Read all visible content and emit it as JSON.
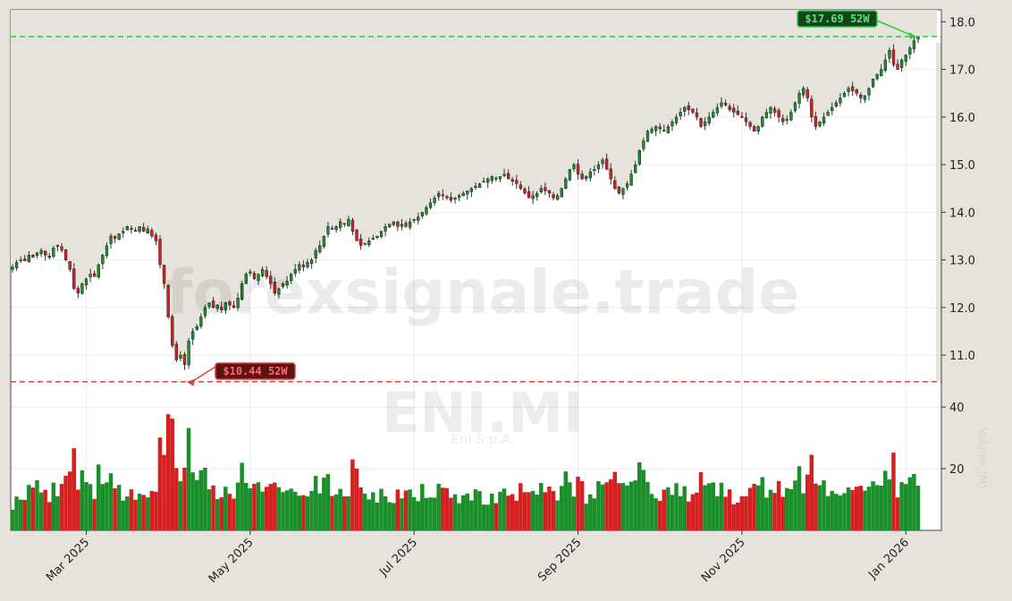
{
  "watermark": {
    "site": "forexsignale.trade",
    "ticker": "ENI.MI",
    "company": "Eni S.p.A.",
    "side_label": "Volume (M)"
  },
  "colors": {
    "up": "#1a8f2a",
    "down": "#d42020",
    "high_line": "#2ecc40",
    "low_line": "#e04040",
    "plot_bg": "#ffffff",
    "shade": "#e6e3dd"
  },
  "chart_data": {
    "type": "candlestick",
    "title": "",
    "xlabel": "",
    "ylabel": "",
    "price_axis": {
      "ylim": [
        10.1,
        18.25
      ],
      "ticks": [
        "11.0",
        "12.0",
        "13.0",
        "14.0",
        "15.0",
        "16.0",
        "17.0",
        "18.0"
      ]
    },
    "volume_axis": {
      "ylim": [
        0,
        47
      ],
      "ticks": [
        "20",
        "40"
      ]
    },
    "x_axis": {
      "ticks": [
        "Mar 2025",
        "May 2025",
        "Jul 2025",
        "Sep 2025",
        "Nov 2025",
        "Jan 2026"
      ]
    },
    "high_52w": {
      "value": 17.69,
      "label": "$17.69 52W"
    },
    "low_52w": {
      "value": 10.44,
      "label": "$10.44 52W"
    },
    "grid": true,
    "series": [
      {
        "month": "2025-02",
        "closes": [
          12.85,
          12.95,
          13.0,
          12.98,
          13.1,
          13.05,
          13.15,
          13.2,
          13.1,
          13.05,
          13.25,
          13.3,
          13.2,
          13.0,
          12.8,
          12.4,
          12.3,
          12.5
        ]
      },
      {
        "month": "2025-03",
        "closes": [
          12.6,
          12.7,
          12.65,
          12.9,
          13.1,
          13.3,
          13.5,
          13.45,
          13.55,
          13.6,
          13.7,
          13.65,
          13.6,
          13.7,
          13.6,
          13.65,
          13.5,
          13.4,
          12.9,
          12.5
        ]
      },
      {
        "month": "2025-04",
        "closes": [
          11.8,
          11.2,
          10.9,
          11.0,
          10.8,
          11.3,
          11.5,
          11.6,
          11.8,
          12.0,
          12.1,
          12.0,
          12.05,
          11.95,
          12.1,
          12.05,
          12.0,
          12.2,
          12.5,
          12.7
        ]
      },
      {
        "month": "2025-05",
        "closes": [
          12.75,
          12.6,
          12.7,
          12.8,
          12.65,
          12.5,
          12.3,
          12.4,
          12.5,
          12.55,
          12.7,
          12.8,
          12.9,
          12.85,
          12.95,
          13.0,
          13.2,
          13.3,
          13.5,
          13.7
        ]
      },
      {
        "month": "2025-06",
        "closes": [
          13.65,
          13.7,
          13.8,
          13.75,
          13.85,
          13.6,
          13.4,
          13.3,
          13.35,
          13.4,
          13.45,
          13.5,
          13.6,
          13.7,
          13.75,
          13.8,
          13.7,
          13.75,
          13.7,
          13.8
        ]
      },
      {
        "month": "2025-07",
        "closes": [
          13.85,
          13.9,
          14.0,
          14.1,
          14.2,
          14.3,
          14.4,
          14.35,
          14.3,
          14.25,
          14.3,
          14.35,
          14.4,
          14.45,
          14.5,
          14.55,
          14.6,
          14.65,
          14.7,
          14.75
        ]
      },
      {
        "month": "2025-08",
        "closes": [
          14.7,
          14.75,
          14.8,
          14.7,
          14.65,
          14.6,
          14.5,
          14.4,
          14.3,
          14.35,
          14.4,
          14.5,
          14.45,
          14.4,
          14.3,
          14.35,
          14.5,
          14.7,
          14.9,
          15.0
        ]
      },
      {
        "month": "2025-09",
        "closes": [
          14.8,
          14.7,
          14.75,
          14.85,
          14.9,
          15.0,
          15.1,
          14.9,
          14.7,
          14.5,
          14.4,
          14.5,
          14.6,
          14.8,
          15.0,
          15.3,
          15.5,
          15.7,
          15.75,
          15.8
        ]
      },
      {
        "month": "2025-10",
        "closes": [
          15.75,
          15.7,
          15.8,
          15.9,
          16.0,
          16.1,
          16.2,
          16.15,
          16.1,
          16.0,
          15.8,
          15.9,
          16.0,
          16.1,
          16.2,
          16.3,
          16.25,
          16.15,
          16.1,
          16.05
        ]
      },
      {
        "month": "2025-11",
        "closes": [
          16.0,
          15.9,
          15.8,
          15.7,
          15.8,
          16.0,
          16.1,
          16.2,
          16.1,
          16.0,
          15.9,
          15.95,
          16.1,
          16.3,
          16.5,
          16.6,
          16.4,
          16.0,
          15.8,
          15.9
        ]
      },
      {
        "month": "2025-12",
        "closes": [
          16.0,
          16.1,
          16.2,
          16.3,
          16.4,
          16.5,
          16.6,
          16.55,
          16.5,
          16.4,
          16.45,
          16.6,
          16.8,
          16.9,
          17.0,
          17.2,
          17.4,
          17.1,
          17.0,
          17.2
        ]
      },
      {
        "month": "2026-01",
        "closes": [
          17.3,
          17.45,
          17.6,
          17.69
        ]
      }
    ]
  }
}
